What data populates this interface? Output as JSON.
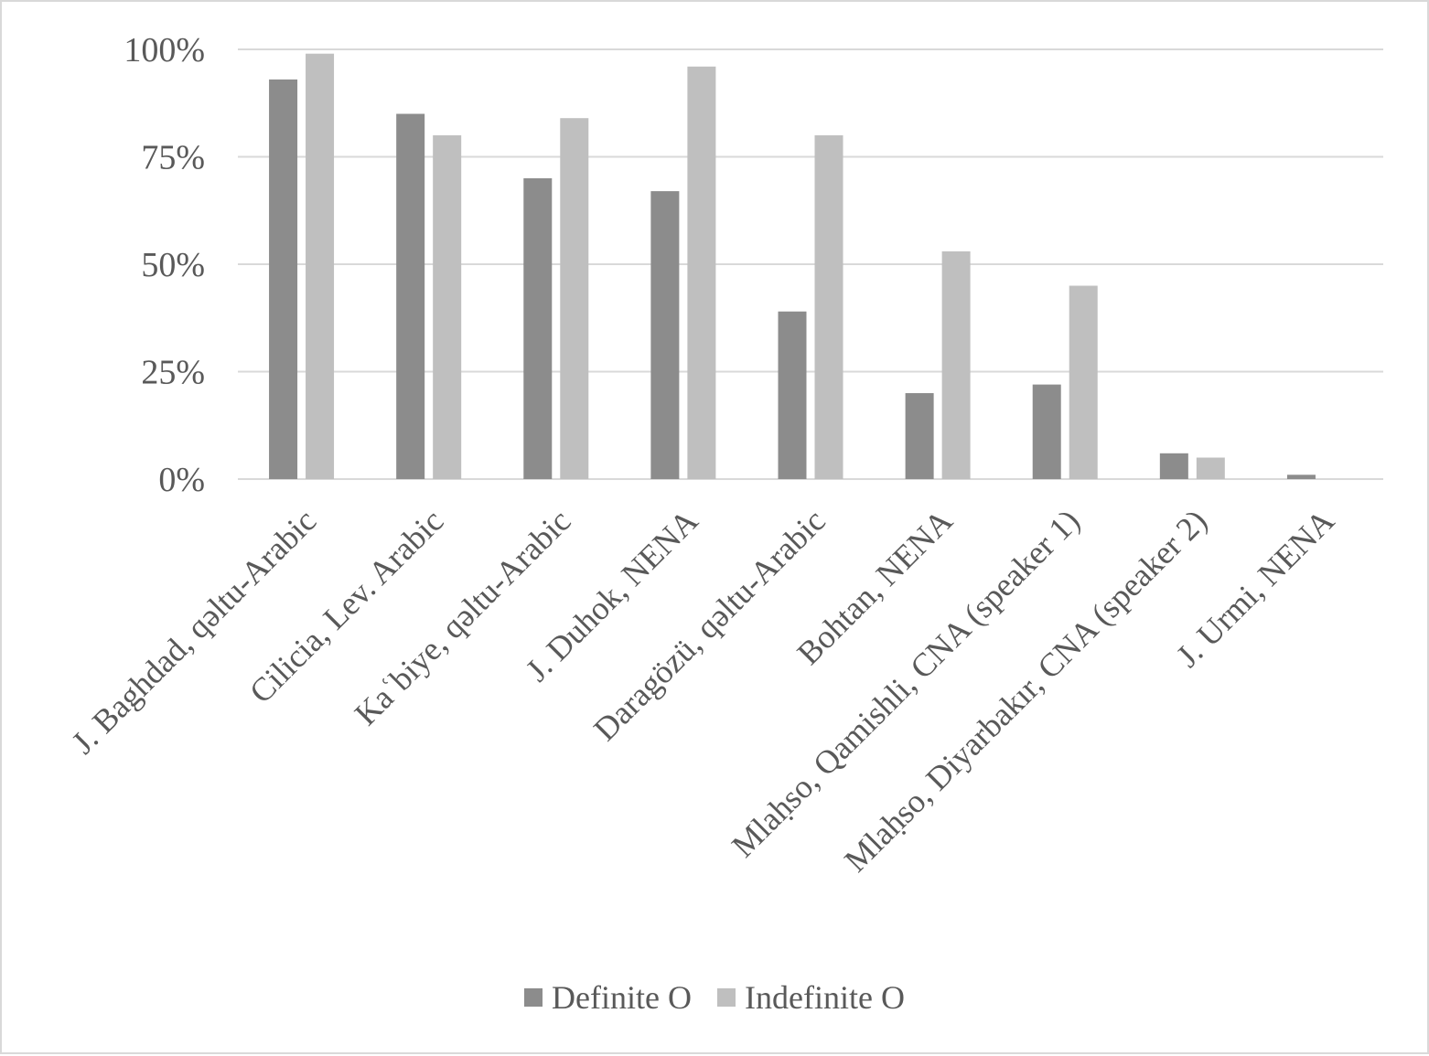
{
  "chart_data": {
    "type": "bar",
    "categories": [
      "J. Baghdad, qəltu-Arabic",
      "Cilicia, Lev. Arabic",
      "Kaʿbiye, qəltu-Arabic",
      "J. Duhok, NENA",
      "Daragözü, qəltu-Arabic",
      "Bohtan, NENA",
      "Mlaḥso, Qamishli, CNA  (speaker 1)",
      "Mlaḥso, Diyarbakır, CNA (speaker 2)",
      "J. Urmi, NENA"
    ],
    "series": [
      {
        "name": "Definite O",
        "color": "#8c8c8c",
        "values": [
          93,
          85,
          70,
          67,
          39,
          20,
          22,
          6,
          1
        ]
      },
      {
        "name": "Indefinite O",
        "color": "#bfbfbf",
        "values": [
          99,
          80,
          84,
          96,
          80,
          53,
          45,
          5,
          0
        ]
      }
    ],
    "yticks": [
      "0%",
      "25%",
      "50%",
      "75%",
      "100%"
    ],
    "ylim": [
      0,
      100
    ],
    "grid": true,
    "gridline_color": "#d9d9d9",
    "legend_position": "bottom",
    "title": "",
    "xlabel": "",
    "ylabel": ""
  }
}
